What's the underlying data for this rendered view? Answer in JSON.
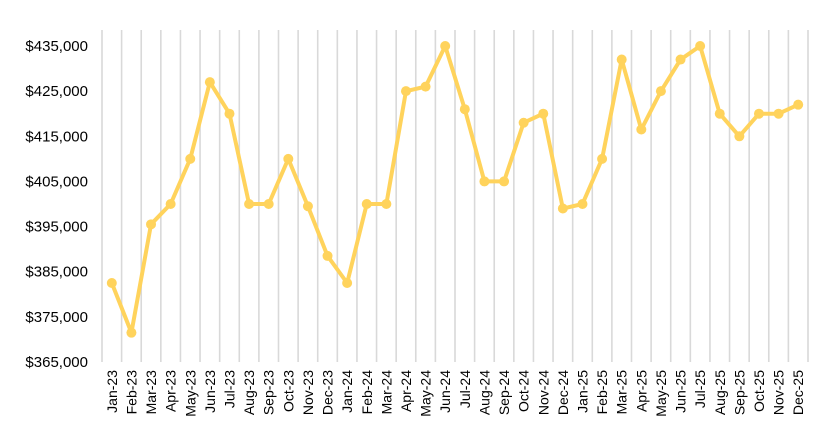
{
  "chart_data": {
    "type": "line",
    "title": "",
    "xlabel": "",
    "ylabel": "",
    "categories": [
      "Jan-23",
      "Feb-23",
      "Mar-23",
      "Apr-23",
      "May-23",
      "Jun-23",
      "Jul-23",
      "Aug-23",
      "Sep-23",
      "Oct-23",
      "Nov-23",
      "Dec-23",
      "Jan-24",
      "Feb-24",
      "Mar-24",
      "Apr-24",
      "May-24",
      "Jun-24",
      "Jul-24",
      "Aug-24",
      "Sep-24",
      "Oct-24",
      "Nov-24",
      "Dec-24",
      "Jan-25",
      "Feb-25",
      "Mar-25",
      "Apr-25",
      "May-25",
      "Jun-25",
      "Jul-25",
      "Aug-25",
      "Sep-25",
      "Oct-25",
      "Nov-25",
      "Dec-25"
    ],
    "series": [
      {
        "values": [
          382500,
          371500,
          395500,
          400000,
          410000,
          427000,
          420000,
          400000,
          400000,
          410000,
          399500,
          388500,
          382500,
          400000,
          400000,
          425000,
          426000,
          435000,
          421000,
          405000,
          405000,
          418000,
          420000,
          399000,
          400000,
          410000,
          432000,
          416500,
          425000,
          432000,
          435000,
          420000,
          415000,
          420000,
          420000,
          422000
        ],
        "color": "#FFD35C"
      }
    ],
    "ylim": [
      365000,
      435000
    ],
    "y_ticks": [
      "$365,000",
      "$375,000",
      "$385,000",
      "$395,000",
      "$405,000",
      "$415,000",
      "$425,000",
      "$435,000"
    ],
    "y_tick_values": [
      365000,
      375000,
      385000,
      395000,
      405000,
      415000,
      425000,
      435000
    ],
    "grid": "vertical",
    "grid_color": "#D9D9D9",
    "legend": "none"
  }
}
